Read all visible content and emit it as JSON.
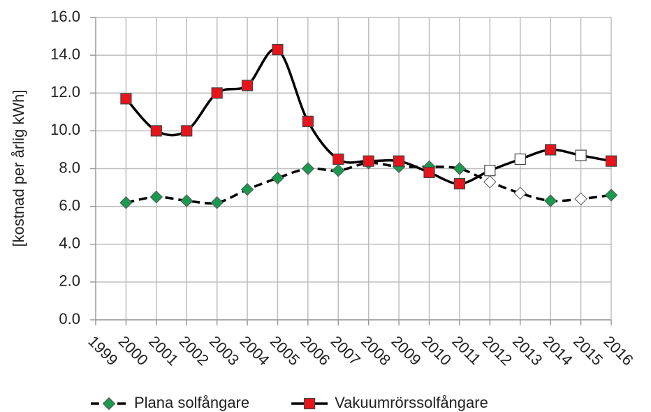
{
  "chart_data": {
    "type": "line",
    "y_label": "[kostnad per årlig kWh]",
    "categories": [
      "1999",
      "2000",
      "2001",
      "2002",
      "2003",
      "2004",
      "2005",
      "2006",
      "2007",
      "2008",
      "2009",
      "2010",
      "2011",
      "2012",
      "2013",
      "2014",
      "2015",
      "2016"
    ],
    "series": [
      {
        "name": "Plana solfångare",
        "color": "#000000",
        "marker_color": "#1a9a50",
        "dashed": true,
        "values": [
          null,
          6.2,
          6.5,
          6.3,
          6.2,
          6.9,
          7.5,
          8.0,
          7.9,
          8.3,
          8.1,
          8.1,
          8.0,
          7.3,
          6.7,
          6.3,
          6.4,
          6.6
        ],
        "point_colors": [
          null,
          "#1a9a50",
          "#1a9a50",
          "#1a9a50",
          "#1a9a50",
          "#1a9a50",
          "#1a9a50",
          "#1a9a50",
          "#1a9a50",
          "#1a9a50",
          "#1a9a50",
          "#1a9a50",
          "#1a9a50",
          "#ffffff",
          "#ffffff",
          "#1a9a50",
          "#ffffff",
          "#1a9a50"
        ]
      },
      {
        "name": "Vakuumrörssolfångare",
        "color": "#000000",
        "marker_color": "#e8141c",
        "dashed": false,
        "values": [
          null,
          11.7,
          10.0,
          10.0,
          12.0,
          12.4,
          14.3,
          10.5,
          8.5,
          8.4,
          8.4,
          7.8,
          7.2,
          7.9,
          8.5,
          9.0,
          8.7,
          8.4
        ],
        "point_colors": [
          null,
          "#e8141c",
          "#e8141c",
          "#e8141c",
          "#e8141c",
          "#e8141c",
          "#e8141c",
          "#e8141c",
          "#e8141c",
          "#e8141c",
          "#e8141c",
          "#e8141c",
          "#e8141c",
          "#ffffff",
          "#ffffff",
          "#e8141c",
          "#ffffff",
          "#e8141c"
        ]
      }
    ],
    "ylim": [
      0,
      16
    ],
    "yticks": [
      {
        "value": 0,
        "label": "0.0"
      },
      {
        "value": 2,
        "label": "2.0"
      },
      {
        "value": 4,
        "label": "4.0"
      },
      {
        "value": 6,
        "label": "6.0"
      },
      {
        "value": 8,
        "label": "8.0"
      },
      {
        "value": 10,
        "label": "10.0"
      },
      {
        "value": 12,
        "label": "12.0"
      },
      {
        "value": 14,
        "label": "14.0"
      },
      {
        "value": 16,
        "label": "16.0"
      }
    ],
    "grid": true,
    "legend": "bottom"
  }
}
